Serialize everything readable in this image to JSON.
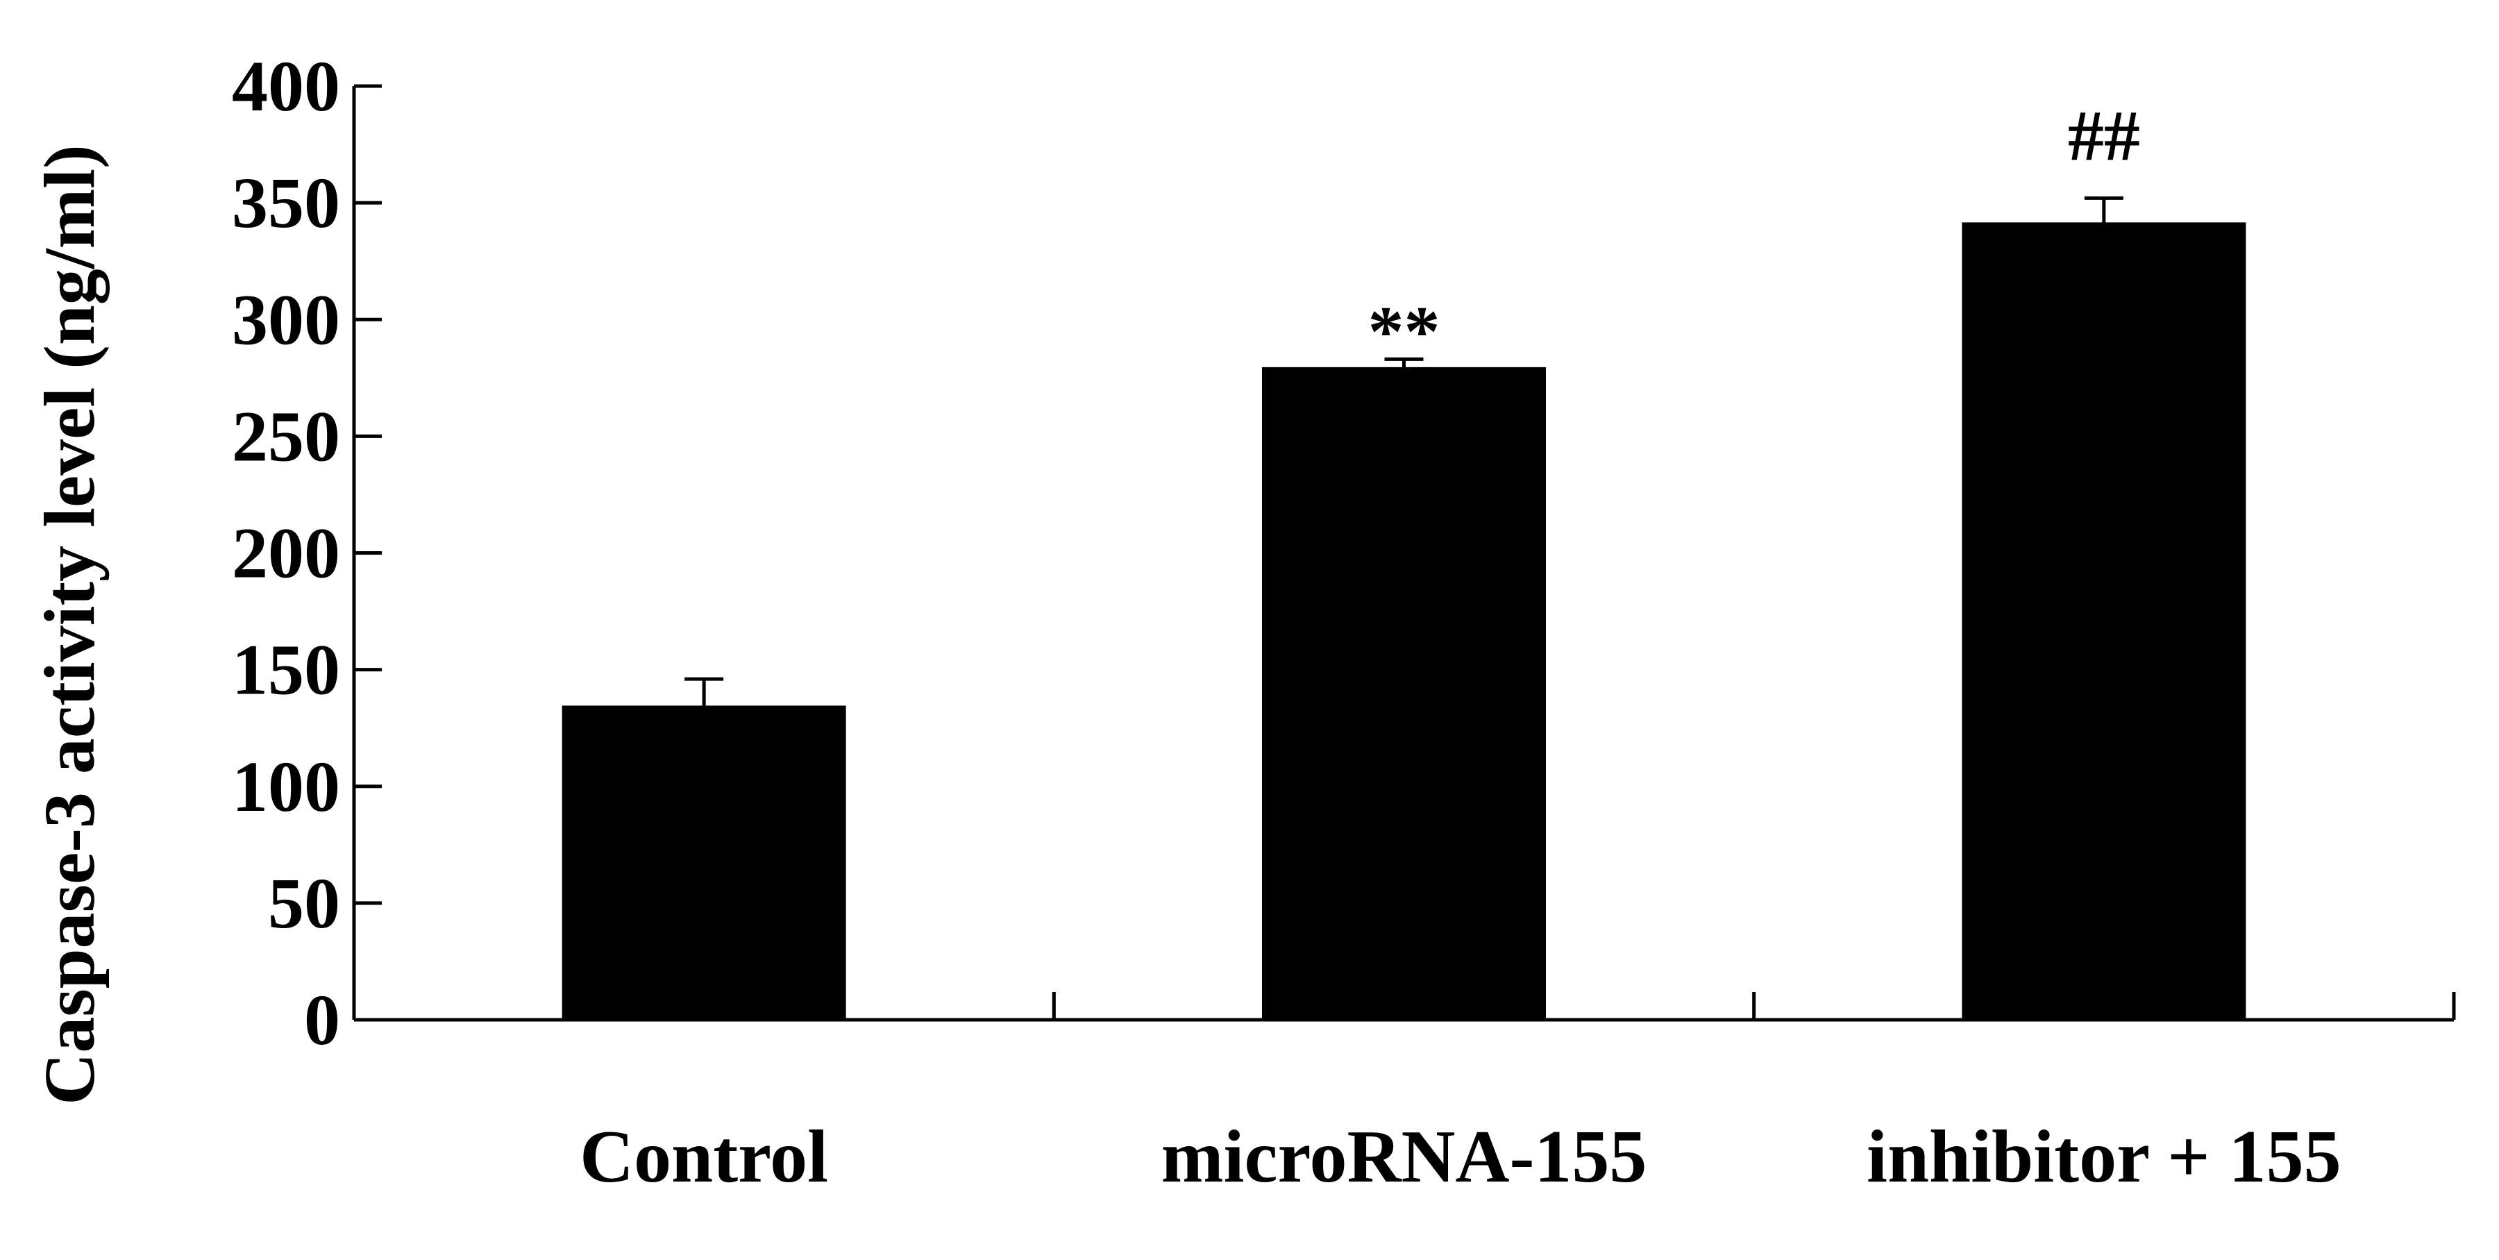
{
  "chart_data": {
    "type": "bar",
    "title": "",
    "xlabel": "",
    "ylabel": "Caspase-3 activity level (ng/ml)",
    "ylim": [
      0,
      400
    ],
    "yticks": [
      0,
      50,
      100,
      150,
      200,
      250,
      300,
      350,
      400
    ],
    "categories": [
      "Control",
      "microRNA-155",
      "inhibitor + 155"
    ],
    "values": [
      134,
      279,
      341
    ],
    "errors": [
      12,
      4,
      11
    ],
    "annotations": [
      "",
      "**",
      "##"
    ],
    "bar_color": "#000000",
    "grid": false,
    "legend": "none"
  }
}
